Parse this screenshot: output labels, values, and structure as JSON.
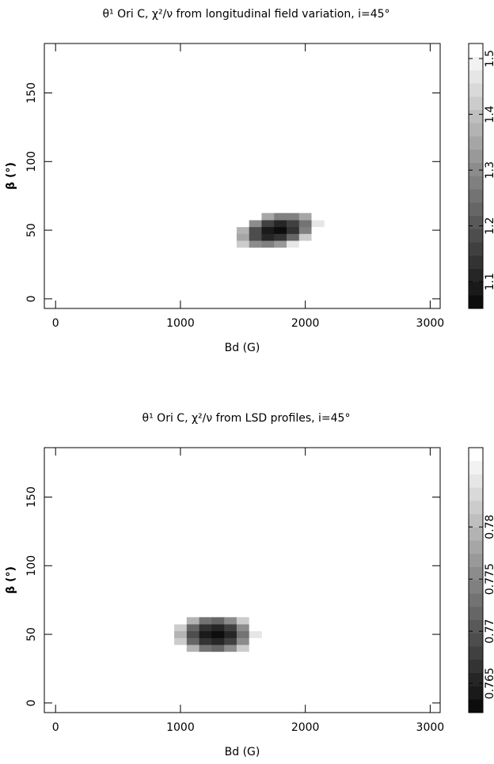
{
  "chart_data": [
    {
      "type": "heatmap",
      "title": "θ¹ Ori C, χ²/ν from longitudinal field variation, i=45°",
      "x_label": "Bd (G)",
      "y_label": "β (°)",
      "xlim": [
        -90,
        3080
      ],
      "xticks": [
        0,
        1000,
        2000,
        3000
      ],
      "ylim": [
        -7,
        186
      ],
      "yticks": [
        0,
        50,
        100,
        150
      ],
      "x": [
        1500,
        1600,
        1700,
        1800,
        1900,
        2000,
        2100
      ],
      "y": [
        40,
        45,
        50,
        55,
        60
      ],
      "z": [
        [
          1.43,
          1.31,
          1.28,
          1.33,
          1.47,
          1.7,
          2.02
        ],
        [
          1.35,
          1.19,
          1.12,
          1.14,
          1.25,
          1.44,
          1.72
        ],
        [
          1.38,
          1.19,
          1.09,
          1.07,
          1.14,
          1.3,
          1.54
        ],
        [
          1.54,
          1.31,
          1.17,
          1.12,
          1.16,
          1.27,
          1.48
        ],
        [
          1.82,
          1.56,
          1.37,
          1.29,
          1.29,
          1.37,
          1.54
        ]
      ],
      "zlim": [
        1.052,
        1.527
      ],
      "zticks": [
        1.1,
        1.2,
        1.3,
        1.4,
        1.5
      ],
      "colormap": "gray"
    },
    {
      "type": "heatmap",
      "title": "θ¹ Ori C, χ²/ν from LSD profiles, i=45°",
      "x_label": "Bd (G)",
      "y_label": "β (°)",
      "xlim": [
        -90,
        3080
      ],
      "xticks": [
        0,
        1000,
        2000,
        3000
      ],
      "ylim": [
        -7,
        186
      ],
      "yticks": [
        0,
        50,
        100,
        150
      ],
      "x": [
        1000,
        1100,
        1200,
        1300,
        1400,
        1500,
        1600
      ],
      "y": [
        40,
        45,
        50,
        55,
        60
      ],
      "z": [
        [
          0.7896,
          0.7797,
          0.774,
          0.7728,
          0.7758,
          0.783,
          0.7947
        ],
        [
          0.7824,
          0.7725,
          0.7667,
          0.7655,
          0.7685,
          0.7758,
          0.7874
        ],
        [
          0.7799,
          0.77,
          0.7643,
          0.7631,
          0.7661,
          0.7733,
          0.785
        ],
        [
          0.7824,
          0.7725,
          0.7667,
          0.7655,
          0.7685,
          0.7758,
          0.7874
        ],
        [
          0.7896,
          0.7797,
          0.774,
          0.7728,
          0.7758,
          0.783,
          0.7947
        ]
      ],
      "zlim": [
        0.7622,
        0.7876
      ],
      "zticks": [
        0.765,
        0.77,
        0.775,
        0.78
      ],
      "colormap": "gray"
    }
  ]
}
